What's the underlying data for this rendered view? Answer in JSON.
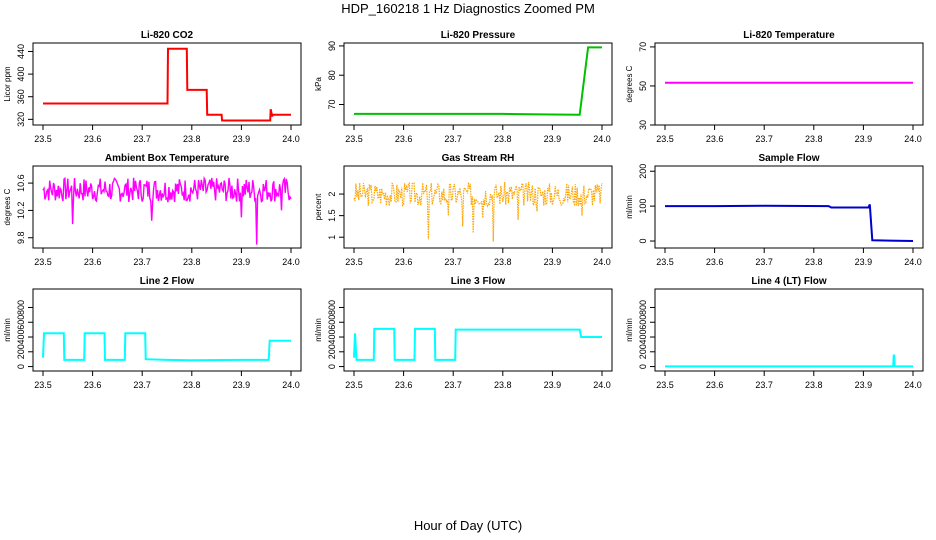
{
  "figure": {
    "title": "HDP_160218  1 Hz Diagnostics Zoomed PM",
    "xlabel": "Hour of Day (UTC)"
  },
  "chart_data": [
    {
      "type": "line",
      "title": "Li-820 CO2",
      "ylabel": "Licor ppm",
      "color": "#ff0000",
      "xlim": [
        23.5,
        24.0
      ],
      "ylim": [
        310,
        455
      ],
      "xticks": [
        "23.5",
        "23.6",
        "23.7",
        "23.8",
        "23.9",
        "24.0"
      ],
      "yticks": [
        320,
        360,
        400,
        440
      ],
      "series": [
        {
          "x": [
            23.5,
            23.751,
            23.752,
            23.79,
            23.791,
            23.83,
            23.831,
            23.86,
            23.861,
            23.958,
            23.959,
            23.962,
            23.963,
            24.0
          ],
          "y": [
            348,
            348,
            445,
            445,
            372,
            372,
            328,
            328,
            318,
            318,
            338,
            325,
            328,
            328
          ]
        }
      ]
    },
    {
      "type": "line",
      "title": "Li-820 Pressure",
      "ylabel": "kPa",
      "color": "#00c000",
      "xlim": [
        23.5,
        24.0
      ],
      "ylim": [
        63,
        91
      ],
      "xticks": [
        "23.5",
        "23.6",
        "23.7",
        "23.8",
        "23.9",
        "24.0"
      ],
      "yticks": [
        70,
        80,
        90
      ],
      "series": [
        {
          "x": [
            23.5,
            23.6,
            23.7,
            23.8,
            23.9,
            23.955,
            23.965,
            23.972,
            24.0
          ],
          "y": [
            66.8,
            66.8,
            66.8,
            66.8,
            66.6,
            66.5,
            80,
            89.5,
            89.5
          ]
        }
      ]
    },
    {
      "type": "line",
      "title": "Li-820 Temperature",
      "ylabel": "degrees C",
      "color": "#ff00ff",
      "xlim": [
        23.5,
        24.0
      ],
      "ylim": [
        30,
        72
      ],
      "xticks": [
        "23.5",
        "23.6",
        "23.7",
        "23.8",
        "23.9",
        "24.0"
      ],
      "yticks": [
        30,
        50,
        70
      ],
      "series": [
        {
          "x": [
            23.5,
            24.0
          ],
          "y": [
            51.6,
            51.6
          ]
        }
      ]
    },
    {
      "type": "line",
      "title": "Ambient Box Temperature",
      "ylabel": "degrees C",
      "color": "#ff00ff",
      "xlim": [
        23.5,
        24.0
      ],
      "ylim": [
        9.65,
        10.85
      ],
      "xticks": [
        "23.5",
        "23.6",
        "23.7",
        "23.8",
        "23.9",
        "24.0"
      ],
      "yticks": [
        9.8,
        10.2,
        10.6
      ],
      "noise": {
        "base": 10.5,
        "amp": 0.18,
        "seed": 7,
        "spikes": [
          [
            23.56,
            10.0
          ],
          [
            23.72,
            10.05
          ],
          [
            23.9,
            10.1
          ],
          [
            23.93,
            9.7
          ],
          [
            23.98,
            10.2
          ]
        ]
      }
    },
    {
      "type": "scatter",
      "title": "Gas Stream RH",
      "ylabel": "percent",
      "color": "#ffa500",
      "xlim": [
        23.5,
        24.0
      ],
      "ylim": [
        0.75,
        2.65
      ],
      "xticks": [
        "23.5",
        "23.6",
        "23.7",
        "23.8",
        "23.9",
        "24.0"
      ],
      "yticks": [
        1.0,
        1.5,
        2.0
      ],
      "noise": {
        "base": 2.0,
        "amp": 0.28,
        "seed": 3,
        "spikes": [
          [
            23.65,
            0.95
          ],
          [
            23.72,
            1.25
          ],
          [
            23.76,
            1.45
          ],
          [
            23.78,
            0.9
          ],
          [
            23.83,
            1.4
          ],
          [
            23.87,
            1.6
          ],
          [
            23.96,
            1.5
          ],
          [
            23.69,
            1.5
          ],
          [
            23.74,
            1.1
          ]
        ]
      }
    },
    {
      "type": "line",
      "title": "Sample Flow",
      "ylabel": "ml/min",
      "color": "#0000cc",
      "xlim": [
        23.5,
        24.0
      ],
      "ylim": [
        -20,
        215
      ],
      "xticks": [
        "23.5",
        "23.6",
        "23.7",
        "23.8",
        "23.9",
        "24.0"
      ],
      "yticks": [
        0,
        100,
        200
      ],
      "series": [
        {
          "x": [
            23.5,
            23.6,
            23.7,
            23.83,
            23.835,
            23.91,
            23.913,
            23.918,
            24.0
          ],
          "y": [
            100,
            100,
            101,
            100,
            96,
            96,
            105,
            2,
            0
          ]
        }
      ]
    },
    {
      "type": "line",
      "title": "Line 2 Flow",
      "ylabel": "ml/min",
      "color": "#00ffff",
      "xlim": [
        23.5,
        24.0
      ],
      "ylim": [
        -60,
        1050
      ],
      "xticks": [
        "23.5",
        "23.6",
        "23.7",
        "23.8",
        "23.9",
        "24.0"
      ],
      "yticks": [
        0,
        200,
        400,
        600,
        800
      ],
      "series": [
        {
          "x": [
            23.5,
            23.502,
            23.542,
            23.543,
            23.583,
            23.584,
            23.624,
            23.625,
            23.665,
            23.666,
            23.706,
            23.707,
            23.75,
            23.8,
            23.9,
            23.955,
            23.957,
            24.0
          ],
          "y": [
            120,
            450,
            450,
            90,
            90,
            450,
            450,
            90,
            90,
            450,
            450,
            100,
            90,
            85,
            90,
            90,
            350,
            350
          ]
        }
      ]
    },
    {
      "type": "line",
      "title": "Line 3 Flow",
      "ylabel": "ml/min",
      "color": "#00ffff",
      "xlim": [
        23.5,
        24.0
      ],
      "ylim": [
        -60,
        1050
      ],
      "xticks": [
        "23.5",
        "23.6",
        "23.7",
        "23.8",
        "23.9",
        "24.0"
      ],
      "yticks": [
        0,
        200,
        400,
        600,
        800
      ],
      "series": [
        {
          "x": [
            23.5,
            23.502,
            23.505,
            23.54,
            23.541,
            23.581,
            23.582,
            23.622,
            23.623,
            23.663,
            23.664,
            23.704,
            23.705,
            23.8,
            23.9,
            23.955,
            23.958,
            24.0
          ],
          "y": [
            120,
            450,
            90,
            90,
            510,
            510,
            90,
            90,
            510,
            510,
            90,
            90,
            500,
            500,
            500,
            500,
            400,
            400
          ]
        }
      ]
    },
    {
      "type": "line",
      "title": "Line 4 (LT) Flow",
      "ylabel": "ml/min",
      "color": "#00ffff",
      "xlim": [
        23.5,
        24.0
      ],
      "ylim": [
        -60,
        1050
      ],
      "xticks": [
        "23.5",
        "23.6",
        "23.7",
        "23.8",
        "23.9",
        "24.0"
      ],
      "yticks": [
        0,
        200,
        400,
        600,
        800
      ],
      "series": [
        {
          "x": [
            23.5,
            23.96,
            23.961,
            23.962,
            23.963,
            24.0
          ],
          "y": [
            2,
            2,
            150,
            150,
            2,
            2
          ]
        }
      ]
    }
  ]
}
